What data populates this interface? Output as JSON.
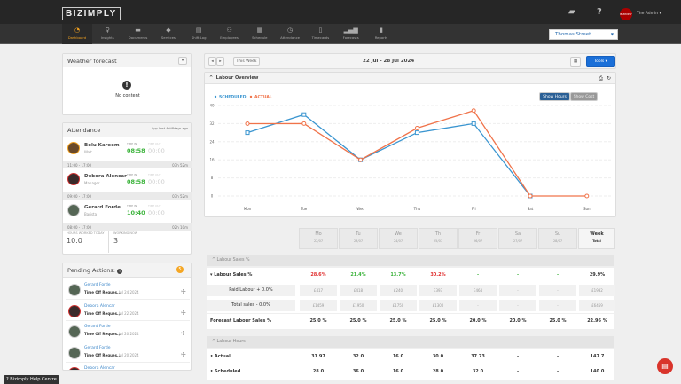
{
  "header": {
    "logo": "BIZIMPLY",
    "user": "The Admin ▾",
    "avatar_text": "BIZIMPLY"
  },
  "nav": [
    {
      "label": "Dashboard",
      "icon": "gauge-icon",
      "active": true
    },
    {
      "label": "Insights",
      "icon": "lightbulb-icon"
    },
    {
      "label": "Documents",
      "icon": "folder-icon"
    },
    {
      "label": "Services",
      "icon": "tag-icon"
    },
    {
      "label": "Shift Log",
      "icon": "book-icon"
    },
    {
      "label": "Employees",
      "icon": "users-icon"
    },
    {
      "label": "Schedule",
      "icon": "calendar-icon"
    },
    {
      "label": "Attendance",
      "icon": "clock-icon"
    },
    {
      "label": "Timecards",
      "icon": "file-icon"
    },
    {
      "label": "Forecasts",
      "icon": "signal-icon"
    },
    {
      "label": "Reports",
      "icon": "document-icon"
    }
  ],
  "location": "Thomas Street",
  "weather": {
    "title": "Weather forecast",
    "empty": "No content"
  },
  "attendance": {
    "title": "Attendance",
    "last_active": "App Last Acti8days ago",
    "time_in_label": "TIME IN",
    "time_out_label": "TIME OUT",
    "people": [
      {
        "name": "Bolu Kareem",
        "role": "Wait",
        "in": "08:58",
        "out": "00:00",
        "shift": "11:00 - 17:00",
        "duration": "03h 52m"
      },
      {
        "name": "Debora Alencar",
        "role": "Manager",
        "in": "08:58",
        "out": "00:00",
        "shift": "09:00 - 17:00",
        "duration": "03h 52m"
      },
      {
        "name": "Gerard Forde",
        "role": "Barista",
        "in": "10:40",
        "out": "00:00",
        "shift": "08:00 - 17:00",
        "duration": "02h 10m"
      }
    ],
    "hours_label": "HOURS WORKED TODAY",
    "hours": "10.0",
    "working_label": "WORKING NOW",
    "working": "3"
  },
  "pending": {
    "title": "Pending Actions:",
    "count": "5",
    "items": [
      {
        "name": "Gerard Forde",
        "type": "Time Off Reques...",
        "date": "Jul 24 2024"
      },
      {
        "name": "Debora Alencar",
        "type": "Time Off Reques...",
        "date": "Jul 22 2024"
      },
      {
        "name": "Gerard Forde",
        "type": "Time Off Reques...",
        "date": "Jul 20 2024"
      },
      {
        "name": "Gerard Forde",
        "type": "Time Off Reques...",
        "date": "Jul 20 2024"
      },
      {
        "name": "Debora Alencar",
        "type": "",
        "date": ""
      }
    ]
  },
  "help": "? Bizimply Help Centre",
  "toolbar": {
    "this_week": "This Week",
    "range": "22 Jul - 28 Jul 2024",
    "tools": "Tools ▾"
  },
  "overview": {
    "title": "Labour Overview",
    "show_hours": "Show Hours",
    "show_cost": "Show Cost"
  },
  "chart_data": {
    "type": "line",
    "categories": [
      "Mon",
      "Tue",
      "Wed",
      "Thu",
      "Fri",
      "Sat",
      "Sun"
    ],
    "ylim": [
      0,
      40
    ],
    "yticks": [
      0,
      8,
      16,
      24,
      32,
      40
    ],
    "grid": true,
    "legend": "top-left",
    "series": [
      {
        "name": "SCHEDULED",
        "color": "#3a95d0",
        "values": [
          28,
          36,
          16,
          28,
          32,
          0,
          null
        ]
      },
      {
        "name": "ACTUAL",
        "color": "#f0734a",
        "values": [
          31.97,
          32,
          16,
          30,
          37.73,
          0,
          0
        ]
      }
    ]
  },
  "table": {
    "days": [
      {
        "d": "Mo",
        "date": "22/07"
      },
      {
        "d": "Tu",
        "date": "23/07"
      },
      {
        "d": "We",
        "date": "24/07"
      },
      {
        "d": "Th",
        "date": "25/07"
      },
      {
        "d": "Fr",
        "date": "26/07"
      },
      {
        "d": "Sa",
        "date": "27/07"
      },
      {
        "d": "Su",
        "date": "28/07"
      },
      {
        "d": "Week",
        "date": "Total"
      }
    ],
    "sec1": "^ Labour Sales %",
    "sec2": "^ Labour Hours",
    "rows": [
      {
        "label": "▾ Labour Sales %",
        "style": "main",
        "values": [
          "28.6%",
          "21.4%",
          "13.7%",
          "30.2%",
          "-",
          "-",
          "-",
          "29.9%"
        ],
        "colors": [
          "#e03030",
          "#3bb33b",
          "#3bb33b",
          "#e03030",
          "#3bb33b",
          "#3bb33b",
          "#3bb33b",
          "#333"
        ]
      },
      {
        "label": "Paid Labour + 0.0%",
        "style": "sub",
        "values": [
          "£417",
          "£418",
          "£240",
          "£393",
          "£464",
          "-",
          "-",
          "£1932"
        ]
      },
      {
        "label": "Total sales - 0.0%",
        "style": "sub",
        "values": [
          "£1459",
          "£1950",
          "£1750",
          "£1300",
          "-",
          "-",
          "-",
          "£6459"
        ]
      },
      {
        "label": "Forecast Labour Sales %",
        "style": "main",
        "values": [
          "25.0 %",
          "25.0 %",
          "25.0 %",
          "25.0 %",
          "20.0 %",
          "20.0 %",
          "25.0 %",
          "22.96 %"
        ]
      }
    ],
    "hours_rows": [
      {
        "label": "• Actual",
        "values": [
          "31.97",
          "32.0",
          "16.0",
          "30.0",
          "37.73",
          "-",
          "-",
          "147.7"
        ]
      },
      {
        "label": "• Scheduled",
        "values": [
          "28.0",
          "36.0",
          "16.0",
          "28.0",
          "32.0",
          "-",
          "-",
          "140.0"
        ]
      }
    ]
  }
}
